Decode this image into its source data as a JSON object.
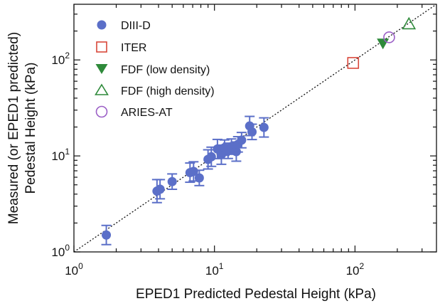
{
  "chart_data": {
    "type": "scatter",
    "xlabel": "EPED1 Predicted Pedestal Height (kPa)",
    "ylabel_line1": "Measured (or EPED1 predicted)",
    "ylabel_line2": "Pedestal Height (kPa)",
    "xscale": "log",
    "yscale": "log",
    "xlim": [
      1,
      380
    ],
    "ylim": [
      1,
      380
    ],
    "x_ticks": [
      {
        "value": 1,
        "mant": "10",
        "exp": "0"
      },
      {
        "value": 10,
        "mant": "10",
        "exp": "1"
      },
      {
        "value": 100,
        "mant": "10",
        "exp": "2"
      }
    ],
    "y_ticks": [
      {
        "value": 1,
        "mant": "10",
        "exp": "0"
      },
      {
        "value": 10,
        "mant": "10",
        "exp": "1"
      },
      {
        "value": 100,
        "mant": "10",
        "exp": "2"
      }
    ],
    "grid": false,
    "reference_line": {
      "style": "dotted",
      "from": [
        1,
        1
      ],
      "to": [
        380,
        380
      ]
    },
    "legend_position": "top-left",
    "series": [
      {
        "name": "DIII-D",
        "marker": "filled-circle",
        "color": "#5b6fc8",
        "points": [
          {
            "x": 1.7,
            "y": 1.5,
            "err": 0.1
          },
          {
            "x": 3.9,
            "y": 4.3,
            "err": 0.12
          },
          {
            "x": 4.1,
            "y": 4.5,
            "err": 0.1
          },
          {
            "x": 5.0,
            "y": 5.4,
            "err": 0.08
          },
          {
            "x": 6.7,
            "y": 6.7,
            "err": 0.1
          },
          {
            "x": 7.1,
            "y": 6.9,
            "err": 0.1
          },
          {
            "x": 7.8,
            "y": 5.9,
            "err": 0.08
          },
          {
            "x": 9.0,
            "y": 9.2,
            "err": 0.1
          },
          {
            "x": 9.5,
            "y": 9.8,
            "err": 0.1
          },
          {
            "x": 10.5,
            "y": 11.8,
            "err": 0.1
          },
          {
            "x": 11.2,
            "y": 10.3,
            "err": 0.1
          },
          {
            "x": 11.8,
            "y": 12.2,
            "err": 0.08
          },
          {
            "x": 12.5,
            "y": 11.3,
            "err": 0.08
          },
          {
            "x": 13.2,
            "y": 12.5,
            "err": 0.08
          },
          {
            "x": 14.3,
            "y": 11.1,
            "err": 0.1
          },
          {
            "x": 14.7,
            "y": 13.2,
            "err": 0.08
          },
          {
            "x": 15.6,
            "y": 14.6,
            "err": 0.08
          },
          {
            "x": 17.8,
            "y": 20.5,
            "err": 0.1
          },
          {
            "x": 18.5,
            "y": 17.8,
            "err": 0.08
          },
          {
            "x": 22.5,
            "y": 19.8,
            "err": 0.1
          }
        ]
      },
      {
        "name": "ITER",
        "marker": "open-square",
        "color": "#d9473a",
        "points": [
          {
            "x": 97,
            "y": 93
          }
        ]
      },
      {
        "name": "FDF (low density)",
        "marker": "filled-triangle-down",
        "color": "#2e8a3a",
        "points": [
          {
            "x": 158,
            "y": 148
          }
        ]
      },
      {
        "name": "FDF (high density)",
        "marker": "open-triangle-up",
        "color": "#2e8a3a",
        "points": [
          {
            "x": 242,
            "y": 238
          }
        ]
      },
      {
        "name": "ARIES-AT",
        "marker": "open-circle",
        "color": "#9b5fc6",
        "points": [
          {
            "x": 175,
            "y": 172
          }
        ]
      }
    ]
  }
}
